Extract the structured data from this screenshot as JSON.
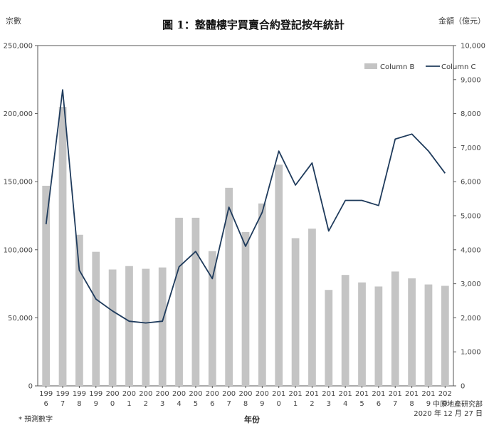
{
  "chart_data": {
    "type": "bar",
    "title": "圖 1：整體樓宇買賣合約登記按年統計",
    "ylabel_left": "宗數",
    "ylabel_right": "金額（億元）",
    "xlabel": "年份",
    "ylim_left": [
      0,
      250000
    ],
    "ylim_right": [
      0,
      10000
    ],
    "yticks_left": [
      "0",
      "50,000",
      "100,000",
      "150,000",
      "200,000",
      "250,000"
    ],
    "yticks_right": [
      "0",
      "1,000",
      "2,000",
      "3,000",
      "4,000",
      "5,000",
      "6,000",
      "7,000",
      "8,000",
      "9,000",
      "10,000"
    ],
    "categories": [
      [
        "199",
        "6"
      ],
      [
        "199",
        "7"
      ],
      [
        "199",
        "8"
      ],
      [
        "199",
        "9"
      ],
      [
        "200",
        "0"
      ],
      [
        "200",
        "1"
      ],
      [
        "200",
        "2"
      ],
      [
        "200",
        "3"
      ],
      [
        "200",
        "4"
      ],
      [
        "200",
        "5"
      ],
      [
        "200",
        "6"
      ],
      [
        "200",
        "7"
      ],
      [
        "200",
        "8"
      ],
      [
        "200",
        "9"
      ],
      [
        "201",
        "0"
      ],
      [
        "201",
        "1"
      ],
      [
        "201",
        "2"
      ],
      [
        "201",
        "3"
      ],
      [
        "201",
        "4"
      ],
      [
        "201",
        "5"
      ],
      [
        "201",
        "6"
      ],
      [
        "201",
        "7"
      ],
      [
        "201",
        "8"
      ],
      [
        "201",
        "9"
      ],
      [
        "202",
        "0"
      ]
    ],
    "series": [
      {
        "name": "Column B",
        "kind": "bar",
        "axis": "left",
        "color": "#c4c4c4",
        "values": [
          147000,
          205000,
          111000,
          98500,
          85500,
          88000,
          86000,
          87000,
          123500,
          123500,
          99000,
          145500,
          113000,
          134000,
          162500,
          108500,
          115500,
          70500,
          81500,
          76000,
          73000,
          84000,
          79000,
          74500,
          73500
        ]
      },
      {
        "name": "Column C",
        "kind": "line",
        "axis": "right",
        "color": "#1f3b5c",
        "values": [
          4750,
          8700,
          3400,
          2550,
          2200,
          1900,
          1850,
          1900,
          3500,
          3950,
          3150,
          5250,
          4100,
          5100,
          6900,
          5900,
          6550,
          4550,
          5450,
          5450,
          5300,
          7250,
          7400,
          6900,
          6250
        ]
      }
    ],
    "legend_position": "top-right",
    "grid": false
  },
  "notes": {
    "forecast": "* 預測數字",
    "source": "中原地產研究部",
    "date": "2020 年 12 月 27 日"
  }
}
